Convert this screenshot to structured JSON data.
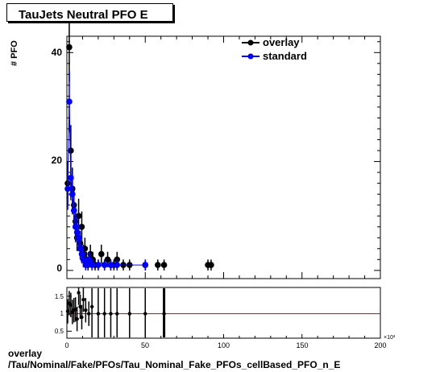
{
  "title": "TauJets Neutral PFO E",
  "caption_line1": "overlay",
  "caption_line2": "/Tau/Nominal/Fake/PFOs/Tau_Nominal_Fake_PFOs_cellBased_PFO_n_E",
  "chart_data": {
    "type": "scatter",
    "ylabel": "# PFO",
    "x_exponent_label": "×10³",
    "xlim": [
      0,
      200
    ],
    "ylim": [
      -1.5,
      43
    ],
    "x_ticks": [
      0,
      50,
      100,
      150,
      200
    ],
    "y_ticks": [
      0,
      20,
      40
    ],
    "series": [
      {
        "name": "overlay",
        "color": "#000000",
        "x": [
          0.5,
          1.5,
          2.5,
          3.5,
          4.5,
          5.5,
          6.5,
          7.5,
          8.5,
          9.5,
          10.5,
          11.5,
          12.5,
          13.5,
          15,
          16.5,
          18,
          20,
          22,
          24,
          26,
          28,
          30,
          32,
          36,
          40,
          50,
          58,
          62,
          90,
          92
        ],
        "y": [
          16,
          41,
          22,
          15,
          12,
          9,
          6,
          10,
          5,
          8,
          3,
          4,
          2,
          1,
          3,
          2,
          1,
          1,
          3,
          1,
          2,
          1,
          1,
          2,
          1,
          1,
          1,
          1,
          1,
          1,
          1
        ]
      },
      {
        "name": "standard",
        "color": "#0000ff",
        "x": [
          0.5,
          1.5,
          2.5,
          3.5,
          4.5,
          5.5,
          6.5,
          7.5,
          8.5,
          9.5,
          10.5,
          12,
          14,
          16,
          20,
          24,
          28,
          32,
          50
        ],
        "y": [
          15,
          31,
          17,
          14,
          11,
          8,
          7,
          6,
          4,
          3,
          2,
          1,
          2,
          1,
          1,
          1,
          1,
          1,
          1
        ]
      }
    ],
    "ratio_panel": {
      "ylim": [
        0.3,
        1.75
      ],
      "y_ticks": [
        0.5,
        1,
        1.5
      ],
      "reference": 1,
      "reference_color": "#cc0000",
      "x": [
        0.5,
        1.5,
        2.5,
        3.5,
        4.5,
        5.5,
        6.5,
        7.5,
        8.5,
        9.5,
        10.5,
        12,
        14,
        16,
        20,
        24,
        28,
        32,
        40,
        50,
        62
      ],
      "y": [
        1.07,
        1.3,
        1.25,
        1.05,
        1.1,
        1.12,
        0.85,
        1.6,
        1.2,
        0.9,
        1.4,
        1.1,
        1.0,
        1.2,
        1.0,
        1.0,
        1.0,
        1.0,
        1.0,
        1.0,
        1.0
      ]
    }
  }
}
